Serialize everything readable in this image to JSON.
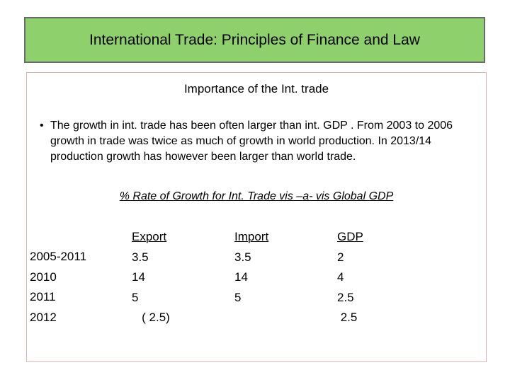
{
  "title": "International Trade: Principles of  Finance  and Law",
  "section_heading": "Importance of the Int. trade",
  "bullet_symbol": "•",
  "paragraph": "The growth in int. trade has been often larger than int. GDP . From 2003 to 2006 growth in trade was twice as much of growth in world production.  In 2013/14 production growth has however been larger than world trade.",
  "table": {
    "caption": "% Rate of Growth for Int. Trade vis –a- vis Global GDP",
    "years": [
      "2005-2011",
      "2010",
      "2011",
      "2012"
    ],
    "export_header": "Export",
    "export_values": [
      "3.5",
      "14",
      "5",
      "   ( 2.5)"
    ],
    "import_header": "Import",
    "import_values": [
      "3.5",
      "14",
      "5"
    ],
    "gdp_header": "GDP",
    "gdp_values": [
      "2",
      "4",
      "2.5",
      " 2.5"
    ]
  }
}
